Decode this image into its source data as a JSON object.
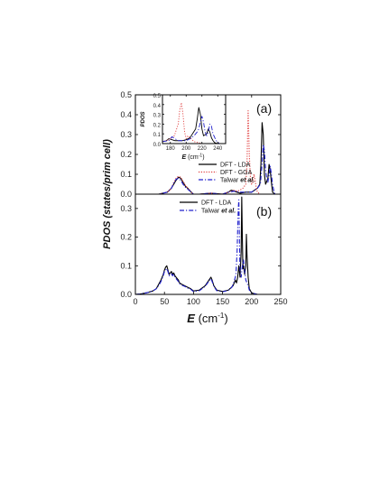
{
  "chart_data": [
    {
      "panel": "a",
      "type": "line",
      "panel_label": "(a)",
      "xlim": [
        0,
        250
      ],
      "ylim": [
        0,
        0.5
      ],
      "yticks": [
        "0.0",
        "0.1",
        "0.2",
        "0.3",
        "0.4",
        "0.5"
      ],
      "yticks_values": [
        0.0,
        0.1,
        0.2,
        0.3,
        0.4,
        0.5
      ],
      "legend_position": "right",
      "series": [
        {
          "name": "DFT - LDA",
          "color": "#000000",
          "dash": "solid",
          "x": [
            0,
            40,
            55,
            62,
            66,
            70,
            74,
            78,
            82,
            86,
            90,
            96,
            100,
            110,
            130,
            150,
            160,
            165,
            170,
            175,
            180,
            190,
            200,
            205,
            210,
            214,
            216,
            218,
            220,
            222,
            224,
            228,
            230,
            232,
            234,
            236,
            240,
            245,
            250
          ],
          "y": [
            0,
            0.0,
            0.01,
            0.03,
            0.05,
            0.07,
            0.085,
            0.08,
            0.06,
            0.04,
            0.03,
            0.01,
            0.0,
            0.0,
            0.005,
            0.0,
            0.01,
            0.02,
            0.015,
            0.01,
            0.005,
            0.01,
            0.01,
            0.02,
            0.03,
            0.05,
            0.15,
            0.36,
            0.3,
            0.1,
            0.05,
            0.08,
            0.15,
            0.12,
            0.06,
            0.01,
            0.0,
            0.0,
            0
          ]
        },
        {
          "name": "DFT - GGA",
          "color": "#e04040",
          "dash": "dotted",
          "x": [
            0,
            40,
            55,
            62,
            66,
            70,
            74,
            78,
            82,
            86,
            90,
            96,
            100,
            110,
            130,
            150,
            160,
            170,
            175,
            180,
            185,
            190,
            192,
            194,
            196,
            198,
            200,
            202,
            204,
            206,
            208,
            210,
            215,
            220,
            250
          ],
          "y": [
            0,
            0.0,
            0.01,
            0.03,
            0.06,
            0.08,
            0.09,
            0.085,
            0.065,
            0.045,
            0.03,
            0.01,
            0.0,
            0.0,
            0.005,
            0.0,
            0.01,
            0.02,
            0.015,
            0.02,
            0.03,
            0.05,
            0.15,
            0.42,
            0.2,
            0.08,
            0.05,
            0.06,
            0.1,
            0.07,
            0.03,
            0.01,
            0.0,
            0.0,
            0
          ]
        },
        {
          "name": "Talwar et al.",
          "color": "#2222cc",
          "dash": "dashdot",
          "x": [
            0,
            40,
            55,
            62,
            66,
            70,
            74,
            78,
            82,
            86,
            90,
            96,
            100,
            110,
            130,
            150,
            160,
            170,
            180,
            190,
            200,
            210,
            215,
            218,
            220,
            222,
            224,
            226,
            228,
            230,
            232,
            234,
            236,
            238,
            240,
            250
          ],
          "y": [
            0,
            0.0,
            0.01,
            0.03,
            0.055,
            0.075,
            0.08,
            0.07,
            0.05,
            0.035,
            0.025,
            0.01,
            0.0,
            0.0,
            0.005,
            0.0,
            0.01,
            0.015,
            0.01,
            0.01,
            0.01,
            0.03,
            0.05,
            0.15,
            0.25,
            0.22,
            0.12,
            0.08,
            0.06,
            0.1,
            0.14,
            0.1,
            0.05,
            0.02,
            0.0,
            0
          ]
        }
      ]
    },
    {
      "panel": "a-inset",
      "type": "line",
      "ylabel": "PDOS",
      "xlabel_parts": [
        "E",
        " (cm",
        "-1",
        ")"
      ],
      "xlim": [
        170,
        250
      ],
      "ylim": [
        0,
        0.5
      ],
      "xticks": [
        "180",
        "200",
        "220",
        "240"
      ],
      "xticks_values": [
        180,
        200,
        220,
        240
      ],
      "yticks": [
        "0.0",
        "0.1",
        "0.2",
        "0.3",
        "0.4",
        "0.5"
      ],
      "yticks_values": [
        0.0,
        0.1,
        0.2,
        0.3,
        0.4,
        0.5
      ],
      "series": [
        {
          "name": "DFT - LDA",
          "color": "#000000",
          "dash": "solid",
          "x": [
            170,
            175,
            178,
            182,
            186,
            190,
            195,
            200,
            205,
            208,
            212,
            214,
            216,
            218,
            220,
            222,
            226,
            228,
            230,
            232,
            234,
            236,
            240,
            250
          ],
          "y": [
            0.02,
            0.03,
            0.05,
            0.04,
            0.03,
            0.03,
            0.03,
            0.04,
            0.06,
            0.1,
            0.15,
            0.25,
            0.37,
            0.3,
            0.15,
            0.08,
            0.1,
            0.15,
            0.12,
            0.06,
            0.03,
            0.01,
            0.0,
            0.0
          ]
        },
        {
          "name": "DFT - GGA",
          "color": "#e04040",
          "dash": "dotted",
          "x": [
            170,
            175,
            180,
            185,
            190,
            192,
            194,
            196,
            198,
            200,
            202,
            205,
            210,
            220,
            250
          ],
          "y": [
            0.02,
            0.03,
            0.05,
            0.08,
            0.2,
            0.35,
            0.42,
            0.3,
            0.12,
            0.05,
            0.08,
            0.06,
            0.02,
            0.0,
            0.0
          ]
        },
        {
          "name": "Talwar et al.",
          "color": "#2222cc",
          "dash": "dashdot",
          "x": [
            170,
            178,
            182,
            186,
            190,
            200,
            205,
            210,
            214,
            216,
            218,
            220,
            222,
            224,
            226,
            228,
            230,
            232,
            234,
            238,
            242,
            250
          ],
          "y": [
            0.02,
            0.03,
            0.07,
            0.05,
            0.03,
            0.03,
            0.05,
            0.08,
            0.12,
            0.15,
            0.22,
            0.28,
            0.22,
            0.12,
            0.08,
            0.12,
            0.2,
            0.18,
            0.1,
            0.03,
            0.0,
            0.0
          ]
        }
      ]
    },
    {
      "panel": "b",
      "type": "line",
      "panel_label": "(b)",
      "xlabel_parts": [
        "E",
        " (cm",
        "-1",
        ")"
      ],
      "ylabel": "PDOS (states/prim cell)",
      "xlim": [
        0,
        250
      ],
      "ylim": [
        0,
        0.35
      ],
      "xticks": [
        "0",
        "50",
        "100",
        "150",
        "200",
        "250"
      ],
      "xticks_values": [
        0,
        50,
        100,
        150,
        200,
        250
      ],
      "yticks": [
        "0.0",
        "0.1",
        "0.2",
        "0.3"
      ],
      "yticks_values": [
        0.0,
        0.1,
        0.2,
        0.3
      ],
      "legend_position": "top-center",
      "series": [
        {
          "name": "DFT - LDA",
          "color": "#000000",
          "dash": "solid",
          "x": [
            0,
            10,
            20,
            30,
            36,
            40,
            44,
            48,
            50,
            52,
            54,
            56,
            58,
            60,
            62,
            64,
            66,
            68,
            70,
            72,
            74,
            76,
            80,
            85,
            90,
            95,
            100,
            110,
            120,
            125,
            130,
            132,
            135,
            140,
            150,
            160,
            168,
            172,
            174,
            176,
            178,
            180,
            182,
            183,
            184,
            185,
            186,
            188,
            190,
            191,
            192,
            194,
            196,
            200,
            210,
            250
          ],
          "y": [
            0,
            0.002,
            0.006,
            0.012,
            0.02,
            0.035,
            0.05,
            0.07,
            0.085,
            0.095,
            0.1,
            0.085,
            0.07,
            0.075,
            0.08,
            0.07,
            0.075,
            0.065,
            0.06,
            0.055,
            0.05,
            0.04,
            0.035,
            0.03,
            0.025,
            0.02,
            0.012,
            0.015,
            0.03,
            0.045,
            0.06,
            0.05,
            0.03,
            0.015,
            0.01,
            0.015,
            0.03,
            0.05,
            0.04,
            0.06,
            0.1,
            0.06,
            0.15,
            0.34,
            0.2,
            0.09,
            0.1,
            0.07,
            0.1,
            0.21,
            0.14,
            0.06,
            0.02,
            0.005,
            0.0,
            0
          ]
        },
        {
          "name": "Talwar et al.",
          "color": "#2222cc",
          "dash": "dashdot",
          "x": [
            0,
            10,
            20,
            30,
            36,
            40,
            44,
            48,
            50,
            52,
            54,
            56,
            58,
            60,
            62,
            64,
            66,
            68,
            70,
            72,
            74,
            76,
            80,
            85,
            90,
            95,
            100,
            110,
            120,
            125,
            130,
            132,
            135,
            140,
            150,
            160,
            166,
            170,
            173,
            175,
            177,
            178,
            179,
            180,
            182,
            184,
            186,
            188,
            190,
            192,
            194,
            196,
            200,
            210,
            250
          ],
          "y": [
            0,
            0.002,
            0.006,
            0.012,
            0.02,
            0.03,
            0.045,
            0.065,
            0.08,
            0.085,
            0.09,
            0.08,
            0.065,
            0.07,
            0.072,
            0.065,
            0.07,
            0.06,
            0.055,
            0.05,
            0.045,
            0.037,
            0.032,
            0.028,
            0.022,
            0.018,
            0.01,
            0.013,
            0.028,
            0.042,
            0.055,
            0.045,
            0.028,
            0.013,
            0.009,
            0.014,
            0.025,
            0.045,
            0.07,
            0.15,
            0.3,
            0.33,
            0.2,
            0.08,
            0.06,
            0.1,
            0.12,
            0.08,
            0.05,
            0.04,
            0.03,
            0.015,
            0.005,
            0.0,
            0
          ]
        }
      ]
    }
  ]
}
